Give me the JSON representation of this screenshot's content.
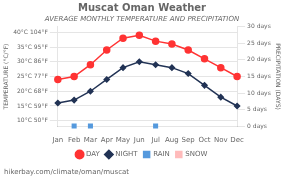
{
  "chart_data": {
    "type": "line",
    "title": "Muscat Oman Weather",
    "subtitle": "AVERAGE MONTHLY TEMPERATURE AND PRECIPITATION",
    "categories": [
      "Jan",
      "Feb",
      "Mar",
      "Apr",
      "May",
      "Jun",
      "Jul",
      "Aug",
      "Sep",
      "Oct",
      "Nov",
      "Dec"
    ],
    "y_label": "TEMPERATURE (°C/°F)",
    "y2_label": "PRECIPITATION (DAYS)",
    "ylim": [
      8,
      42
    ],
    "yticks": [
      {
        "value": 40,
        "label": "40°C 104°F"
      },
      {
        "value": 35,
        "label": "35°C 95°F"
      },
      {
        "value": 30,
        "label": "30°C 86°F"
      },
      {
        "value": 25,
        "label": "25°C 77°F"
      },
      {
        "value": 20,
        "label": "20°C 68°F"
      },
      {
        "value": 15,
        "label": "15°C 59°F"
      },
      {
        "value": 10,
        "label": "10°C 50°F"
      }
    ],
    "y2lim": [
      0,
      30
    ],
    "y2ticks": [
      {
        "value": 30,
        "label": "30 days"
      },
      {
        "value": 25,
        "label": "25 days"
      },
      {
        "value": 20,
        "label": "20 days"
      },
      {
        "value": 15,
        "label": "15 days"
      },
      {
        "value": 10,
        "label": "10 days"
      },
      {
        "value": 5,
        "label": "5 days"
      },
      {
        "value": 0,
        "label": "0 days"
      }
    ],
    "series": [
      {
        "name": "DAY",
        "color": "#ff3333",
        "marker": "circle",
        "values": [
          24,
          25,
          29,
          34,
          38,
          39,
          37,
          36,
          34,
          31,
          28,
          25
        ]
      },
      {
        "name": "NIGHT",
        "color": "#223355",
        "marker": "diamond",
        "values": [
          16,
          17,
          20,
          24,
          28,
          30,
          29,
          28,
          26,
          22,
          18,
          15
        ]
      },
      {
        "name": "RAIN",
        "type": "scatter",
        "color": "#5599dd",
        "marker": "square",
        "axis": "y2",
        "values": [
          null,
          0.2,
          0.2,
          null,
          null,
          null,
          0.2,
          null,
          null,
          null,
          null,
          null
        ]
      },
      {
        "name": "SNOW",
        "type": "scatter",
        "color": "#ffbbbb",
        "marker": "square",
        "axis": "y2",
        "values": [
          null,
          null,
          null,
          null,
          null,
          null,
          null,
          null,
          null,
          null,
          null,
          null
        ]
      }
    ],
    "grid": true,
    "legend": "bottom",
    "annotations": [
      "hikerbay.com/climate/oman/muscat"
    ]
  }
}
